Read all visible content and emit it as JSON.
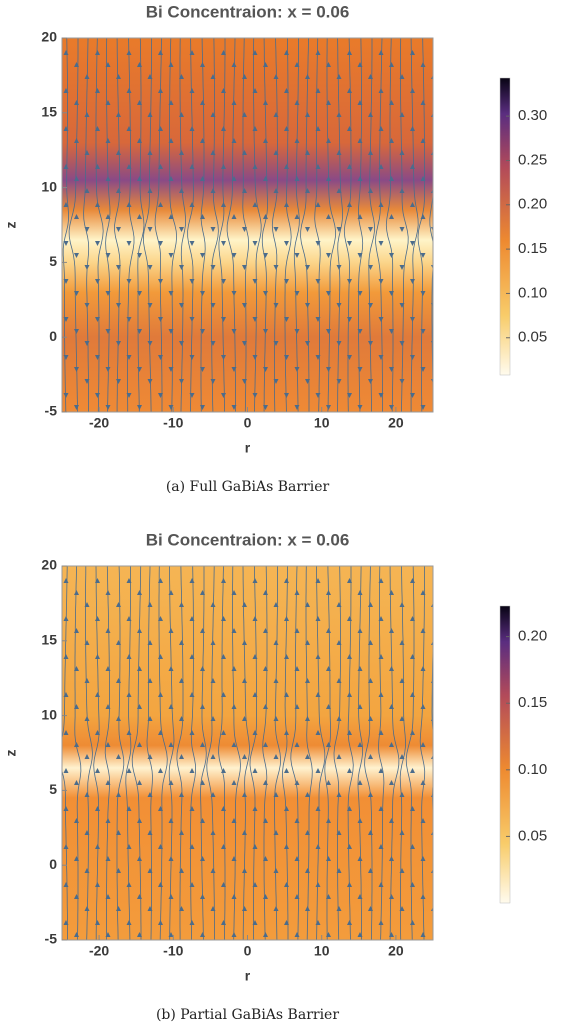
{
  "chart_data": [
    {
      "type": "density",
      "title": "Bi Concentraion: x = 0.06",
      "x_label": "r",
      "y_label": "z",
      "xlim": [
        -25,
        25
      ],
      "ylim": [
        -5,
        20
      ],
      "xticks": [
        -20,
        -10,
        0,
        10,
        20
      ],
      "yticks": [
        -5,
        0,
        5,
        10,
        15,
        20
      ],
      "colorbar": {
        "lim": [
          0.008,
          0.343
        ],
        "ticks": [
          0.05,
          {
            "value": 0.1,
            "label": "0.10"
          },
          0.15,
          {
            "value": 0.2,
            "label": "0.20"
          },
          0.25,
          {
            "value": 0.3,
            "label": "0.30"
          }
        ]
      },
      "caption": "(a) Full GaBiAs Barrier"
    },
    {
      "type": "density",
      "title": "Bi Concentraion: x = 0.06",
      "x_label": "r",
      "y_label": "z",
      "xlim": [
        -25,
        25
      ],
      "ylim": [
        -5,
        20
      ],
      "xticks": [
        -20,
        -10,
        0,
        10,
        20
      ],
      "yticks": [
        -5,
        0,
        5,
        10,
        15,
        20
      ],
      "colorbar": {
        "lim": [
          0,
          0.223
        ],
        "ticks": [
          0.05,
          {
            "value": 0.1,
            "label": "0.10"
          },
          0.15,
          {
            "value": 0.2,
            "label": "0.20"
          }
        ]
      },
      "caption": "(b) Partial GaBiAs Barrier"
    }
  ]
}
